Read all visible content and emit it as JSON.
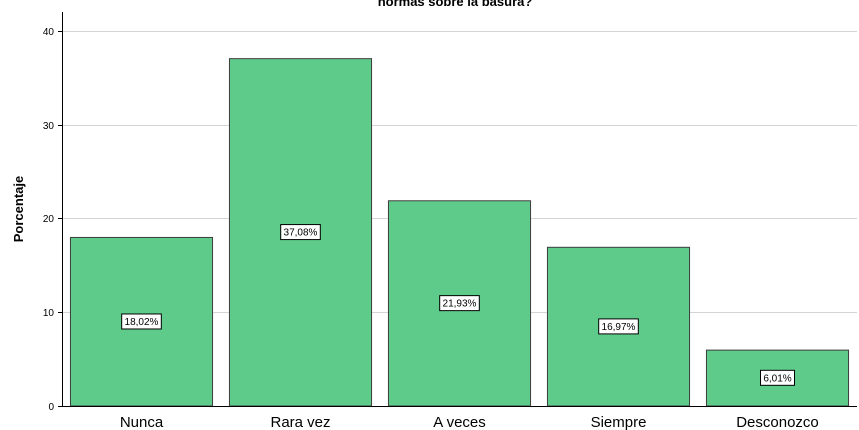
{
  "chart_data": {
    "type": "bar",
    "title": "normas sobre la basura?",
    "xlabel": "",
    "ylabel": "Porcentaje",
    "categories": [
      "Nunca",
      "Rara vez",
      "A veces",
      "Siempre",
      "Desconozco"
    ],
    "values": [
      18.02,
      37.08,
      21.93,
      16.97,
      6.01
    ],
    "data_labels": [
      "18,02%",
      "37,08%",
      "21,93%",
      "16,97%",
      "6,01%"
    ],
    "yticks": [
      "0",
      "10",
      "20",
      "30",
      "40"
    ],
    "ylim": [
      0,
      42
    ],
    "grid": true,
    "bar_color": "#5ecb8a",
    "bar_edge_color": "#3d3d3d",
    "grid_color": "#d4d4d4"
  }
}
